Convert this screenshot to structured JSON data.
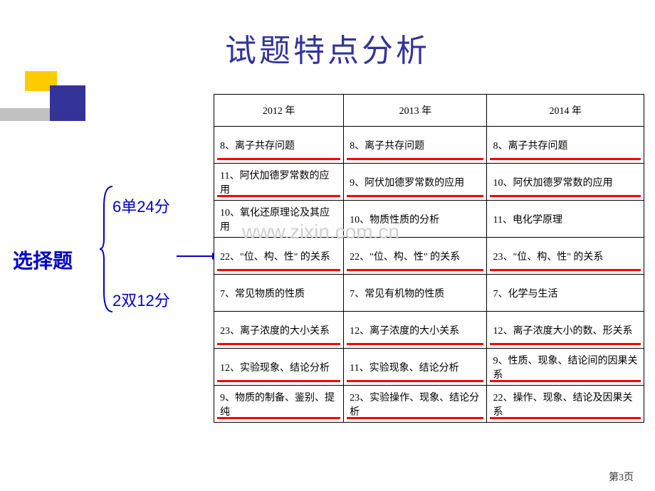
{
  "title": "试题特点分析",
  "watermark": "www.zixin.com.cn",
  "left": {
    "label": "选择题",
    "sub1": "6单24分",
    "sub2": "2双12分"
  },
  "table": {
    "headers": [
      "2012 年",
      "2013 年",
      "2014 年"
    ],
    "rows": [
      {
        "cells": [
          "8、离子共存问题",
          "8、离子共存问题",
          "8、离子共存问题"
        ],
        "underlined": true
      },
      {
        "cells": [
          "11、阿伏加德罗常数的应用",
          "9、阿伏加德罗常数的应用",
          "10、阿伏加德罗常数的应用"
        ],
        "underlined": true
      },
      {
        "cells": [
          "10、氧化还原理论及其应用",
          "10、物质性质的分析",
          "11、电化学原理"
        ],
        "underlined": false
      },
      {
        "cells": [
          "22、\"位、构、性\" 的关系",
          "22、\"位、构、性\" 的关系",
          "23、\"位、构、性\" 的关系"
        ],
        "underlined": true
      },
      {
        "cells": [
          "7、常见物质的性质",
          "7、常见有机物的性质",
          "7、化学与生活"
        ],
        "underlined": false
      },
      {
        "cells": [
          "23、离子浓度的大小关系",
          "12、离子浓度的大小关系",
          "12、离子浓度大小的数、形关系"
        ],
        "underlined": true
      },
      {
        "cells": [
          "12、实验现象、结论分析",
          "11、实验现象、结论分析",
          "9、性质、现象、结论间的因果关系"
        ],
        "underlined": true
      },
      {
        "cells": [
          "9、物质的制备、鉴别、提纯",
          "23、实验操作、现象、结论分析",
          "22、操作、现象、结论及因果关系"
        ],
        "underlined": true
      }
    ]
  },
  "pageNum": "第3页",
  "colors": {
    "title": "#333399",
    "label": "#0000cc",
    "underline": "#ff0000",
    "blueSquare": "#333399",
    "yellowSquare": "#ffcc00",
    "grayBar": "#c0c0c0"
  }
}
